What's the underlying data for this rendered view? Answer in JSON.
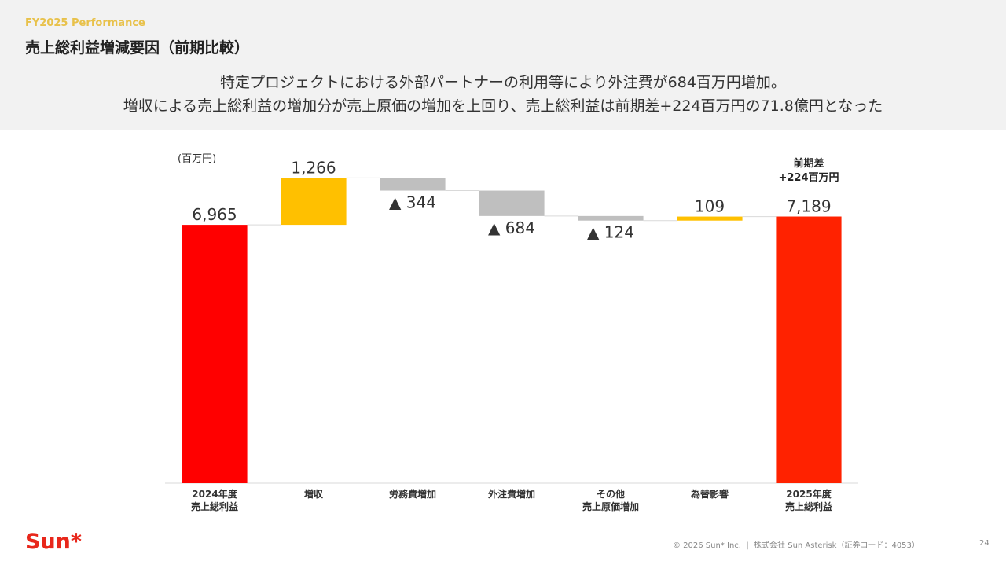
{
  "header": {
    "section": "FY2025 Performance",
    "title": "売上総利益増減要因（前期比較）",
    "subtitle": [
      "特定プロジェクトにおける外部パートナーの利用等により外注費が684百万円増加。",
      "増収による売上総利益の増加分が売上原価の増加を上回り、売上総利益は前期差+224百万円の71.8億円となった"
    ]
  },
  "chart_data": {
    "type": "waterfall",
    "unit_label": "(百万円)",
    "categories": [
      "2024年度\n売上総利益",
      "増収",
      "労務費増加",
      "外注費増加",
      "その他\n売上原価増加",
      "為替影響",
      "2025年度\n売上総利益"
    ],
    "values": [
      6965,
      1266,
      -344,
      -684,
      -124,
      109,
      7189
    ],
    "value_labels": [
      "6,965",
      "1,266",
      "▲ 344",
      "▲ 684",
      "▲ 124",
      "109",
      "7,189"
    ],
    "measure": [
      "absolute",
      "relative",
      "relative",
      "relative",
      "relative",
      "relative",
      "absolute"
    ],
    "colors": [
      "#ff0000",
      "#ffc000",
      "#bfbfbf",
      "#bfbfbf",
      "#bfbfbf",
      "#ffc000",
      "#ff2200"
    ],
    "ylim": [
      0,
      9000
    ],
    "annotation": "前期差\n+224百万円"
  },
  "footer": {
    "logo": "Sun*",
    "copyright": "© 2026 Sun* Inc.  |  株式会社 Sun Asterisk（証券コード：4053）",
    "page": "24"
  }
}
